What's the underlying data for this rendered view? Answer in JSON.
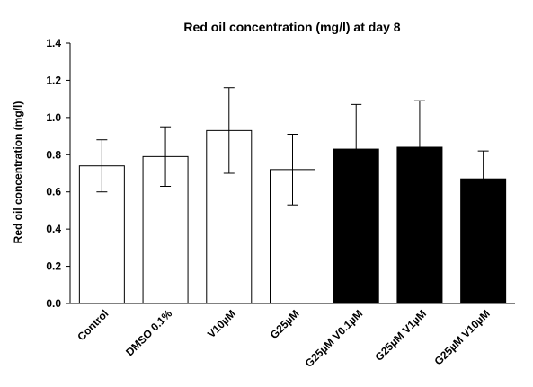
{
  "chart_data": {
    "type": "bar",
    "title": "Red oil concentration (mg/l) at day 8",
    "xlabel": "",
    "ylabel": "Red oil concentration (mg/l)",
    "ylim": [
      0,
      1.4
    ],
    "yticks": [
      "0.0",
      "0.2",
      "0.4",
      "0.6",
      "0.8",
      "1.0",
      "1.2",
      "1.4"
    ],
    "grid": false,
    "categories": [
      "Control",
      "DMSO 0.1%",
      "V10µM",
      "G25µM",
      "G25µM V0.1µM",
      "G25µM V1µM",
      "G25µM V10µM"
    ],
    "values": [
      0.74,
      0.79,
      0.93,
      0.72,
      0.83,
      0.84,
      0.67
    ],
    "errors": [
      0.14,
      0.16,
      0.23,
      0.19,
      0.24,
      0.25,
      0.15
    ],
    "fills": [
      "#ffffff",
      "#ffffff",
      "#ffffff",
      "#ffffff",
      "#000000",
      "#000000",
      "#000000"
    ]
  }
}
